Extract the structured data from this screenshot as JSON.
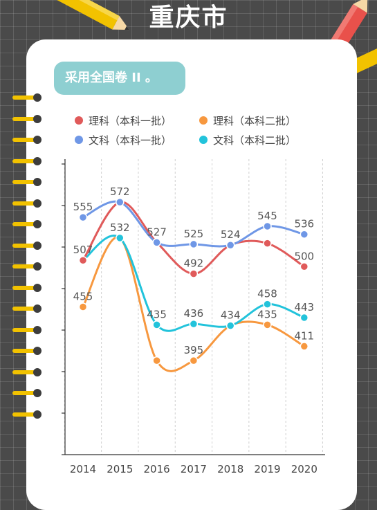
{
  "page": {
    "title": "重庆市",
    "note": "采用全国卷 II 。"
  },
  "chart_data": {
    "type": "line",
    "title": "",
    "xlabel": "",
    "ylabel": "",
    "categories": [
      "2014",
      "2015",
      "2016",
      "2017",
      "2018",
      "2019",
      "2020"
    ],
    "ylim": [
      290,
      620
    ],
    "grid": "vertical dashed",
    "legend_position": "top",
    "series": [
      {
        "name": "理科（本科一批）",
        "color": "#e05a5a",
        "values": [
          507,
          572,
          527,
          492,
          524,
          526,
          500
        ]
      },
      {
        "name": "理科（本科二批）",
        "color": "#f7983f",
        "values": [
          455,
          532,
          395,
          395,
          434,
          435,
          411
        ]
      },
      {
        "name": "文科（本科一批）",
        "color": "#6f97e6",
        "values": [
          555,
          572,
          527,
          525,
          524,
          545,
          536
        ]
      },
      {
        "name": "文科（本科二批）",
        "color": "#22c3db",
        "values": [
          507,
          532,
          435,
          436,
          434,
          458,
          443
        ]
      }
    ],
    "data_labels": [
      {
        "category": "2014",
        "text": "555",
        "series": 2
      },
      {
        "category": "2014",
        "text": "507",
        "series": 0
      },
      {
        "category": "2014",
        "text": "455",
        "series": 1
      },
      {
        "category": "2015",
        "text": "572",
        "series": 2
      },
      {
        "category": "2015",
        "text": "532",
        "series": 3
      },
      {
        "category": "2016",
        "text": "527",
        "series": 2
      },
      {
        "category": "2016",
        "text": "435",
        "series": 3
      },
      {
        "category": "2017",
        "text": "525",
        "series": 2
      },
      {
        "category": "2017",
        "text": "492",
        "series": 0
      },
      {
        "category": "2017",
        "text": "436",
        "series": 3
      },
      {
        "category": "2017",
        "text": "395",
        "series": 1
      },
      {
        "category": "2018",
        "text": "524",
        "series": 2
      },
      {
        "category": "2018",
        "text": "434",
        "series": 3
      },
      {
        "category": "2019",
        "text": "545",
        "series": 2
      },
      {
        "category": "2019",
        "text": "458",
        "series": 3
      },
      {
        "category": "2019",
        "text": "435",
        "series": 1
      },
      {
        "category": "2020",
        "text": "536",
        "series": 2
      },
      {
        "category": "2020",
        "text": "500",
        "series": 0
      },
      {
        "category": "2020",
        "text": "443",
        "series": 3
      },
      {
        "category": "2020",
        "text": "411",
        "series": 1
      }
    ]
  }
}
